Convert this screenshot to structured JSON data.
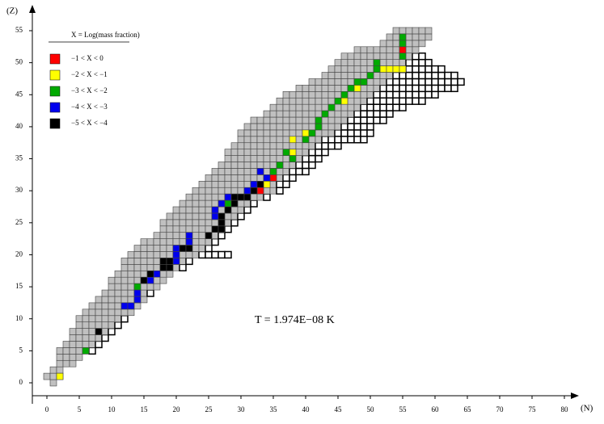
{
  "chart_data": {
    "type": "nuclide-chart",
    "x_label": "(N)",
    "y_label": "(Z)",
    "xlim": [
      0,
      80
    ],
    "ylim": [
      0,
      55
    ],
    "xticks": [
      0,
      5,
      10,
      15,
      20,
      25,
      30,
      35,
      40,
      45,
      50,
      55,
      60,
      65,
      70,
      75,
      80
    ],
    "yticks": [
      0,
      5,
      10,
      15,
      20,
      25,
      30,
      35,
      40,
      45,
      50,
      55
    ],
    "annotation": "T = 1.974E−08 K",
    "legend_title": "X = Log(mass fraction)",
    "legend": [
      {
        "name": "−1 < X < 0",
        "color": "#ff0000"
      },
      {
        "name": "−2 < X < −1",
        "color": "#ffff00"
      },
      {
        "name": "−3 < X < −2",
        "color": "#00aa00"
      },
      {
        "name": "−4 < X < −3",
        "color": "#0000ee"
      },
      {
        "name": "−5 < X < −4",
        "color": "#000000"
      }
    ],
    "rows": [
      [
        0,
        1,
        1,
        1
      ],
      [
        1,
        0,
        2,
        2
      ],
      [
        2,
        1,
        2,
        2
      ],
      [
        3,
        2,
        4,
        4
      ],
      [
        4,
        2,
        5,
        5
      ],
      [
        5,
        2,
        6,
        7
      ],
      [
        6,
        3,
        7,
        8
      ],
      [
        7,
        4,
        8,
        9
      ],
      [
        8,
        4,
        9,
        10
      ],
      [
        9,
        5,
        10,
        11
      ],
      [
        10,
        5,
        11,
        12
      ],
      [
        11,
        6,
        13,
        13
      ],
      [
        12,
        7,
        14,
        14
      ],
      [
        13,
        8,
        15,
        15
      ],
      [
        14,
        9,
        15,
        16
      ],
      [
        15,
        10,
        17,
        17
      ],
      [
        16,
        10,
        18,
        18
      ],
      [
        17,
        11,
        19,
        19
      ],
      [
        18,
        12,
        20,
        21
      ],
      [
        19,
        12,
        21,
        22
      ],
      [
        20,
        13,
        23,
        28
      ],
      [
        21,
        14,
        24,
        25
      ],
      [
        22,
        15,
        25,
        26
      ],
      [
        23,
        17,
        26,
        27
      ],
      [
        24,
        18,
        27,
        28
      ],
      [
        25,
        18,
        28,
        29
      ],
      [
        26,
        19,
        29,
        30
      ],
      [
        27,
        20,
        30,
        31
      ],
      [
        28,
        21,
        31,
        32
      ],
      [
        29,
        22,
        33,
        34
      ],
      [
        30,
        23,
        35,
        36
      ],
      [
        31,
        24,
        35,
        37
      ],
      [
        32,
        25,
        36,
        38
      ],
      [
        33,
        26,
        37,
        40
      ],
      [
        34,
        27,
        38,
        41
      ],
      [
        35,
        28,
        39,
        42
      ],
      [
        36,
        28,
        40,
        43
      ],
      [
        37,
        29,
        41,
        45
      ],
      [
        38,
        30,
        42,
        49
      ],
      [
        39,
        30,
        44,
        50
      ],
      [
        40,
        31,
        45,
        50
      ],
      [
        41,
        32,
        46,
        52
      ],
      [
        42,
        34,
        47,
        53
      ],
      [
        43,
        35,
        48,
        55
      ],
      [
        44,
        36,
        49,
        58
      ],
      [
        45,
        37,
        50,
        60
      ],
      [
        46,
        39,
        51,
        63
      ],
      [
        47,
        41,
        52,
        64
      ],
      [
        48,
        43,
        53,
        63
      ],
      [
        49,
        44,
        54,
        61
      ],
      [
        50,
        45,
        55,
        59
      ],
      [
        51,
        46,
        56,
        58
      ],
      [
        52,
        48,
        57,
        57
      ],
      [
        53,
        52,
        58,
        58
      ],
      [
        54,
        53,
        59,
        59
      ],
      [
        55,
        54,
        59,
        59
      ]
    ],
    "cells": [
      [
        52,
        55,
        0
      ],
      [
        30,
        33,
        0
      ],
      [
        32,
        35,
        0
      ],
      [
        1,
        2,
        1
      ],
      [
        49,
        52,
        1
      ],
      [
        49,
        53,
        1
      ],
      [
        49,
        54,
        1
      ],
      [
        49,
        55,
        1
      ],
      [
        46,
        48,
        1
      ],
      [
        44,
        46,
        1
      ],
      [
        39,
        40,
        1
      ],
      [
        38,
        38,
        1
      ],
      [
        36,
        38,
        1
      ],
      [
        31,
        34,
        1
      ],
      [
        5,
        6,
        2
      ],
      [
        15,
        14,
        2
      ],
      [
        28,
        28,
        2
      ],
      [
        30,
        32,
        2
      ],
      [
        33,
        35,
        2
      ],
      [
        34,
        36,
        2
      ],
      [
        35,
        38,
        2
      ],
      [
        36,
        37,
        2
      ],
      [
        38,
        40,
        2
      ],
      [
        39,
        41,
        2
      ],
      [
        40,
        42,
        2
      ],
      [
        41,
        42,
        2
      ],
      [
        42,
        43,
        2
      ],
      [
        43,
        44,
        2
      ],
      [
        44,
        45,
        2
      ],
      [
        45,
        46,
        2
      ],
      [
        46,
        47,
        2
      ],
      [
        47,
        48,
        2
      ],
      [
        47,
        49,
        2
      ],
      [
        48,
        50,
        2
      ],
      [
        49,
        51,
        2
      ],
      [
        50,
        51,
        2
      ],
      [
        51,
        55,
        2
      ],
      [
        53,
        55,
        2
      ],
      [
        54,
        55,
        2
      ],
      [
        12,
        12,
        3
      ],
      [
        12,
        13,
        3
      ],
      [
        13,
        14,
        3
      ],
      [
        14,
        14,
        3
      ],
      [
        16,
        16,
        3
      ],
      [
        17,
        17,
        3
      ],
      [
        18,
        18,
        3
      ],
      [
        19,
        20,
        3
      ],
      [
        20,
        20,
        3
      ],
      [
        21,
        20,
        3
      ],
      [
        22,
        22,
        3
      ],
      [
        23,
        22,
        3
      ],
      [
        26,
        26,
        3
      ],
      [
        27,
        26,
        3
      ],
      [
        28,
        27,
        3
      ],
      [
        29,
        28,
        3
      ],
      [
        30,
        31,
        3
      ],
      [
        31,
        32,
        3
      ],
      [
        32,
        34,
        3
      ],
      [
        33,
        33,
        3
      ],
      [
        8,
        8,
        4
      ],
      [
        16,
        15,
        4
      ],
      [
        17,
        16,
        4
      ],
      [
        18,
        18,
        4
      ],
      [
        18,
        19,
        4
      ],
      [
        19,
        18,
        4
      ],
      [
        19,
        19,
        4
      ],
      [
        21,
        21,
        4
      ],
      [
        21,
        22,
        4
      ],
      [
        23,
        25,
        4
      ],
      [
        24,
        26,
        4
      ],
      [
        24,
        27,
        4
      ],
      [
        25,
        27,
        4
      ],
      [
        26,
        27,
        4
      ],
      [
        27,
        28,
        4
      ],
      [
        28,
        29,
        4
      ],
      [
        29,
        29,
        4
      ],
      [
        29,
        30,
        4
      ],
      [
        29,
        31,
        4
      ],
      [
        30,
        32,
        4
      ],
      [
        31,
        33,
        4
      ]
    ]
  }
}
